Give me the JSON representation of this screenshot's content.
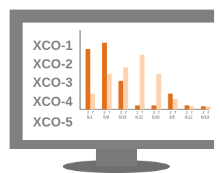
{
  "side_labels": [
    "XCO-1",
    "XCO-2",
    "XCO-3",
    "XCO-4",
    "XCO-5"
  ],
  "chart_data": {
    "type": "bar",
    "categories": [
      "5/1",
      "5/8",
      "5/15",
      "5/22",
      "5/29",
      "6/5",
      "6/12",
      "6/19"
    ],
    "series": [
      {
        "name": "2",
        "color": "#e0701a",
        "values": [
          76,
          84,
          36,
          5,
          5,
          20,
          5,
          4
        ]
      },
      {
        "name": "7",
        "color": "#fcd3ae",
        "values": [
          20,
          45,
          53,
          69,
          45,
          13,
          4,
          4
        ]
      }
    ],
    "ylim": [
      0,
      100
    ]
  }
}
